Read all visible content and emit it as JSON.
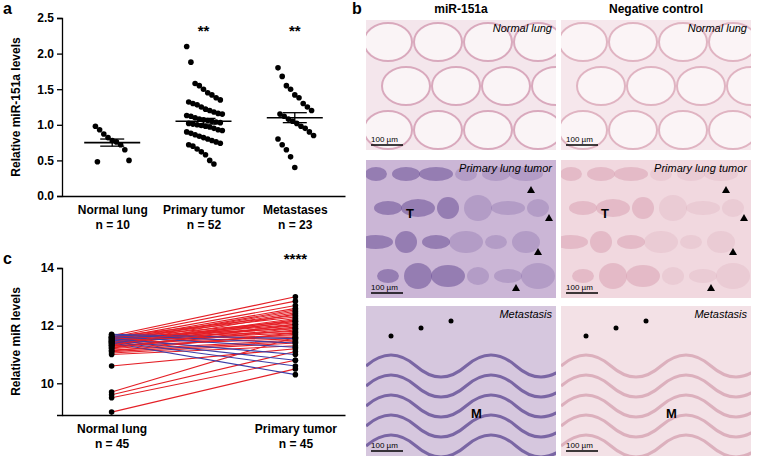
{
  "chart_data": [
    {
      "panel": "a",
      "type": "scatter",
      "y_label": "Relative miR-151a levels",
      "categories": [
        "Normal lung\nn = 10",
        "Primary tumor\nn = 52",
        "Metastases\nn = 23"
      ],
      "values": [
        [
          0.98,
          0.93,
          0.87,
          0.82,
          0.78,
          0.76,
          0.72,
          0.65,
          0.5,
          0.48
        ],
        [
          2.1,
          1.88,
          1.58,
          1.55,
          1.5,
          1.45,
          1.42,
          1.38,
          1.35,
          1.32,
          1.3,
          1.28,
          1.25,
          1.22,
          1.2,
          1.18,
          1.16,
          1.15,
          1.13,
          1.12,
          1.1,
          1.08,
          1.07,
          1.06,
          1.05,
          1.04,
          1.03,
          1.02,
          1.01,
          1.0,
          0.99,
          0.98,
          0.97,
          0.95,
          0.93,
          0.92,
          0.9,
          0.88,
          0.86,
          0.84,
          0.82,
          0.8,
          0.78,
          0.76,
          0.74,
          0.72,
          0.7,
          0.66,
          0.62,
          0.58,
          0.5,
          0.45
        ],
        [
          1.8,
          1.68,
          1.55,
          1.5,
          1.42,
          1.38,
          1.3,
          1.25,
          1.2,
          1.15,
          1.12,
          1.08,
          1.05,
          1.02,
          0.98,
          0.95,
          0.9,
          0.85,
          0.8,
          0.72,
          0.65,
          0.55,
          0.4
        ]
      ],
      "means": [
        0.75,
        1.05,
        1.1
      ],
      "errors": [
        0.05,
        0.04,
        0.07
      ],
      "ylim": [
        0,
        2.5
      ],
      "yticks": [
        {
          "value": 0,
          "label": "0.0"
        },
        {
          "value": 0.5,
          "label": "0.5"
        },
        {
          "value": 1,
          "label": "1.0"
        },
        {
          "value": 1.5,
          "label": "1.5"
        },
        {
          "value": 2,
          "label": "2.0"
        },
        {
          "value": 2.5,
          "label": "2.5"
        }
      ],
      "annotations": [
        {
          "x": 1,
          "text": "**"
        },
        {
          "x": 2,
          "text": "**"
        }
      ],
      "color": "#000000",
      "marker": "circle"
    },
    {
      "panel": "c",
      "type": "line",
      "y_label": "Relative miR levels",
      "categories": [
        "Normal lung\nn = 45",
        "Primary tumor\nn = 45"
      ],
      "values": [
        [
          11.65,
          13.0
        ],
        [
          11.6,
          12.85
        ],
        [
          11.55,
          12.7
        ],
        [
          11.5,
          12.6
        ],
        [
          11.45,
          12.5
        ],
        [
          11.4,
          12.45
        ],
        [
          11.62,
          12.35
        ],
        [
          11.58,
          12.3
        ],
        [
          11.35,
          12.2
        ],
        [
          11.3,
          12.15
        ],
        [
          11.52,
          12.1
        ],
        [
          11.48,
          12.05
        ],
        [
          11.42,
          12.0
        ],
        [
          11.38,
          11.95
        ],
        [
          11.6,
          11.9
        ],
        [
          11.25,
          11.85
        ],
        [
          11.55,
          11.8
        ],
        [
          11.45,
          11.75
        ],
        [
          11.2,
          11.7
        ],
        [
          11.5,
          11.65
        ],
        [
          11.4,
          11.6
        ],
        [
          11.3,
          11.55
        ],
        [
          11.15,
          11.5
        ],
        [
          11.1,
          11.45
        ],
        [
          11.05,
          11.4
        ],
        [
          11.0,
          11.3
        ],
        [
          10.6,
          11.2
        ],
        [
          9.7,
          11.6
        ],
        [
          9.6,
          11.1
        ],
        [
          9.5,
          10.8
        ],
        [
          9.0,
          10.5
        ],
        [
          11.35,
          12.25
        ],
        [
          11.28,
          11.9
        ],
        [
          11.45,
          12.55
        ],
        [
          11.58,
          12.15
        ],
        [
          11.7,
          11.55
        ],
        [
          11.62,
          11.25
        ],
        [
          11.55,
          11.0
        ],
        [
          11.5,
          10.8
        ],
        [
          11.45,
          10.6
        ],
        [
          11.4,
          10.3
        ],
        [
          11.68,
          11.4
        ],
        [
          11.32,
          12.4
        ],
        [
          11.22,
          12.05
        ],
        [
          11.12,
          11.75
        ]
      ],
      "colors": [
        "#e41f26",
        "#e41f26",
        "#e41f26",
        "#e41f26",
        "#e41f26",
        "#e41f26",
        "#e41f26",
        "#e41f26",
        "#e41f26",
        "#e41f26",
        "#e41f26",
        "#e41f26",
        "#e41f26",
        "#e41f26",
        "#e41f26",
        "#e41f26",
        "#e41f26",
        "#e41f26",
        "#e41f26",
        "#e41f26",
        "#e41f26",
        "#e41f26",
        "#e41f26",
        "#e41f26",
        "#e41f26",
        "#e41f26",
        "#e41f26",
        "#e41f26",
        "#e41f26",
        "#e41f26",
        "#e41f26",
        "#e41f26",
        "#e41f26",
        "#e41f26",
        "#e41f26",
        "#3b3fa8",
        "#3b3fa8",
        "#3b3fa8",
        "#3b3fa8",
        "#3b3fa8",
        "#3b3fa8",
        "#3b3fa8",
        "#e41f26",
        "#e41f26",
        "#e41f26"
      ],
      "color": "#000000",
      "marker": "circle",
      "ylim": [
        8.9,
        14
      ],
      "yticks": [
        10,
        12,
        14
      ],
      "annotations": [
        {
          "x": 1,
          "text": "****"
        }
      ]
    }
  ],
  "micrographs": {
    "panel": "b",
    "columns": [
      "miR-151a",
      "Negative control"
    ],
    "rows": [
      "Normal lung",
      "Primary lung tumor",
      "Metastasis"
    ],
    "scale_bar": "100 µm",
    "region_labels": [
      {
        "row": 1,
        "text": "T"
      },
      {
        "row": 2,
        "text": "M"
      }
    ]
  }
}
